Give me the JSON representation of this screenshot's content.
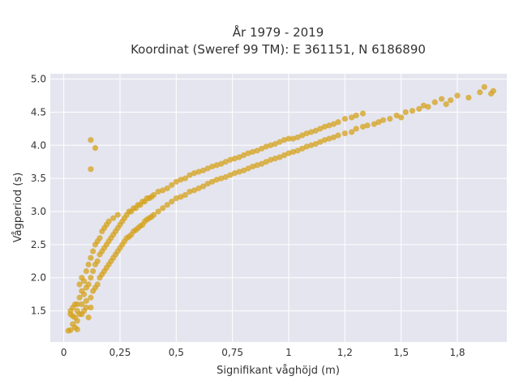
{
  "chart_data": {
    "type": "scatter",
    "title_lines": [
      "År 1979 - 2019",
      "Koordinat (Sweref 99 TM): E 361151, N 6186890"
    ],
    "xlabel": "Signifikant våghöjd (m)",
    "ylabel": "Vågperiod (s)",
    "xlim": [
      -0.06,
      1.97
    ],
    "ylim": [
      1.03,
      5.08
    ],
    "x_ticks": [
      {
        "value": 0,
        "label": "0"
      },
      {
        "value": 0.25,
        "label": "0,25"
      },
      {
        "value": 0.5,
        "label": "0,5"
      },
      {
        "value": 0.75,
        "label": "0,75"
      },
      {
        "value": 1,
        "label": "1"
      },
      {
        "value": 1.25,
        "label": "1,2"
      },
      {
        "value": 1.5,
        "label": "1,5"
      },
      {
        "value": 1.75,
        "label": "1,8"
      }
    ],
    "y_ticks": [
      {
        "value": 1.5,
        "label": "1.5"
      },
      {
        "value": 2.0,
        "label": "2.0"
      },
      {
        "value": 2.5,
        "label": "2.5"
      },
      {
        "value": 3.0,
        "label": "3.0"
      },
      {
        "value": 3.5,
        "label": "3.5"
      },
      {
        "value": 4.0,
        "label": "4.0"
      },
      {
        "value": 4.5,
        "label": "4.5"
      },
      {
        "value": 5.0,
        "label": "5.0"
      }
    ],
    "grid": true,
    "legend": "none",
    "colors": {
      "marker": "#d4a21c",
      "plot_bg": "#e5e5ef",
      "grid": "#ffffff"
    },
    "series": [
      {
        "points": [
          [
            0.02,
            1.2
          ],
          [
            0.03,
            1.21
          ],
          [
            0.03,
            1.45
          ],
          [
            0.04,
            1.3
          ],
          [
            0.04,
            1.55
          ],
          [
            0.05,
            1.25
          ],
          [
            0.05,
            1.4
          ],
          [
            0.05,
            1.6
          ],
          [
            0.06,
            1.5
          ],
          [
            0.06,
            1.35
          ],
          [
            0.07,
            1.45
          ],
          [
            0.07,
            1.7
          ],
          [
            0.07,
            1.9
          ],
          [
            0.08,
            1.6
          ],
          [
            0.08,
            1.8
          ],
          [
            0.08,
            2.0
          ],
          [
            0.09,
            1.5
          ],
          [
            0.09,
            1.75
          ],
          [
            0.09,
            1.95
          ],
          [
            0.1,
            1.65
          ],
          [
            0.1,
            1.85
          ],
          [
            0.1,
            2.1
          ],
          [
            0.11,
            1.4
          ],
          [
            0.11,
            1.9
          ],
          [
            0.11,
            2.2
          ],
          [
            0.12,
            1.7
          ],
          [
            0.12,
            2.0
          ],
          [
            0.12,
            2.3
          ],
          [
            0.13,
            1.8
          ],
          [
            0.13,
            2.1
          ],
          [
            0.13,
            2.4
          ],
          [
            0.14,
            1.85
          ],
          [
            0.14,
            2.2
          ],
          [
            0.14,
            2.5
          ],
          [
            0.15,
            1.9
          ],
          [
            0.15,
            2.25
          ],
          [
            0.15,
            2.55
          ],
          [
            0.16,
            2.0
          ],
          [
            0.16,
            2.35
          ],
          [
            0.16,
            2.6
          ],
          [
            0.17,
            2.05
          ],
          [
            0.17,
            2.4
          ],
          [
            0.17,
            2.7
          ],
          [
            0.18,
            2.1
          ],
          [
            0.18,
            2.45
          ],
          [
            0.18,
            2.75
          ],
          [
            0.19,
            2.15
          ],
          [
            0.19,
            2.5
          ],
          [
            0.19,
            2.8
          ],
          [
            0.2,
            2.2
          ],
          [
            0.2,
            2.55
          ],
          [
            0.2,
            2.85
          ],
          [
            0.21,
            2.25
          ],
          [
            0.21,
            2.6
          ],
          [
            0.22,
            2.3
          ],
          [
            0.22,
            2.65
          ],
          [
            0.22,
            2.9
          ],
          [
            0.23,
            2.35
          ],
          [
            0.23,
            2.7
          ],
          [
            0.24,
            2.4
          ],
          [
            0.24,
            2.75
          ],
          [
            0.24,
            2.95
          ],
          [
            0.25,
            2.45
          ],
          [
            0.25,
            2.8
          ],
          [
            0.26,
            2.5
          ],
          [
            0.26,
            2.85
          ],
          [
            0.27,
            2.55
          ],
          [
            0.27,
            2.9
          ],
          [
            0.28,
            2.6
          ],
          [
            0.28,
            2.95
          ],
          [
            0.29,
            2.62
          ],
          [
            0.29,
            3.0
          ],
          [
            0.3,
            2.65
          ],
          [
            0.3,
            3.0
          ],
          [
            0.31,
            2.7
          ],
          [
            0.31,
            3.05
          ],
          [
            0.32,
            2.72
          ],
          [
            0.32,
            3.05
          ],
          [
            0.33,
            2.75
          ],
          [
            0.33,
            3.1
          ],
          [
            0.34,
            2.78
          ],
          [
            0.34,
            3.1
          ],
          [
            0.35,
            2.8
          ],
          [
            0.35,
            3.15
          ],
          [
            0.36,
            2.85
          ],
          [
            0.36,
            3.15
          ],
          [
            0.37,
            2.88
          ],
          [
            0.37,
            3.2
          ],
          [
            0.38,
            2.9
          ],
          [
            0.38,
            3.2
          ],
          [
            0.39,
            2.92
          ],
          [
            0.39,
            3.22
          ],
          [
            0.4,
            2.95
          ],
          [
            0.4,
            3.25
          ],
          [
            0.42,
            3.0
          ],
          [
            0.42,
            3.3
          ],
          [
            0.44,
            3.05
          ],
          [
            0.44,
            3.32
          ],
          [
            0.46,
            3.1
          ],
          [
            0.46,
            3.35
          ],
          [
            0.48,
            3.15
          ],
          [
            0.48,
            3.4
          ],
          [
            0.5,
            3.2
          ],
          [
            0.5,
            3.45
          ],
          [
            0.52,
            3.22
          ],
          [
            0.52,
            3.48
          ],
          [
            0.54,
            3.25
          ],
          [
            0.54,
            3.5
          ],
          [
            0.56,
            3.3
          ],
          [
            0.56,
            3.55
          ],
          [
            0.58,
            3.32
          ],
          [
            0.58,
            3.58
          ],
          [
            0.6,
            3.35
          ],
          [
            0.6,
            3.6
          ],
          [
            0.62,
            3.38
          ],
          [
            0.62,
            3.62
          ],
          [
            0.64,
            3.42
          ],
          [
            0.64,
            3.65
          ],
          [
            0.66,
            3.45
          ],
          [
            0.66,
            3.68
          ],
          [
            0.68,
            3.48
          ],
          [
            0.68,
            3.7
          ],
          [
            0.7,
            3.5
          ],
          [
            0.7,
            3.72
          ],
          [
            0.72,
            3.52
          ],
          [
            0.72,
            3.75
          ],
          [
            0.74,
            3.55
          ],
          [
            0.74,
            3.78
          ],
          [
            0.76,
            3.58
          ],
          [
            0.76,
            3.8
          ],
          [
            0.78,
            3.6
          ],
          [
            0.78,
            3.82
          ],
          [
            0.8,
            3.62
          ],
          [
            0.8,
            3.85
          ],
          [
            0.82,
            3.65
          ],
          [
            0.82,
            3.88
          ],
          [
            0.84,
            3.68
          ],
          [
            0.84,
            3.9
          ],
          [
            0.86,
            3.7
          ],
          [
            0.86,
            3.92
          ],
          [
            0.88,
            3.72
          ],
          [
            0.88,
            3.95
          ],
          [
            0.9,
            3.75
          ],
          [
            0.9,
            3.98
          ],
          [
            0.92,
            3.78
          ],
          [
            0.92,
            4.0
          ],
          [
            0.94,
            3.8
          ],
          [
            0.94,
            4.02
          ],
          [
            0.96,
            3.82
          ],
          [
            0.96,
            4.05
          ],
          [
            0.98,
            3.85
          ],
          [
            0.98,
            4.08
          ],
          [
            1.0,
            3.88
          ],
          [
            1.0,
            4.1
          ],
          [
            1.02,
            3.9
          ],
          [
            1.02,
            4.1
          ],
          [
            1.04,
            3.92
          ],
          [
            1.04,
            4.12
          ],
          [
            1.06,
            3.95
          ],
          [
            1.06,
            4.15
          ],
          [
            1.08,
            3.98
          ],
          [
            1.08,
            4.18
          ],
          [
            1.1,
            4.0
          ],
          [
            1.1,
            4.2
          ],
          [
            1.12,
            4.02
          ],
          [
            1.12,
            4.22
          ],
          [
            1.14,
            4.05
          ],
          [
            1.14,
            4.25
          ],
          [
            1.16,
            4.08
          ],
          [
            1.16,
            4.28
          ],
          [
            1.18,
            4.1
          ],
          [
            1.18,
            4.3
          ],
          [
            1.2,
            4.12
          ],
          [
            1.2,
            4.32
          ],
          [
            1.22,
            4.15
          ],
          [
            1.22,
            4.35
          ],
          [
            1.25,
            4.18
          ],
          [
            1.25,
            4.4
          ],
          [
            1.28,
            4.2
          ],
          [
            1.28,
            4.42
          ],
          [
            1.3,
            4.25
          ],
          [
            1.3,
            4.45
          ],
          [
            1.33,
            4.28
          ],
          [
            1.33,
            4.48
          ],
          [
            1.35,
            4.3
          ],
          [
            1.38,
            4.32
          ],
          [
            1.4,
            4.35
          ],
          [
            1.42,
            4.38
          ],
          [
            1.45,
            4.4
          ],
          [
            1.48,
            4.45
          ],
          [
            1.5,
            4.42
          ],
          [
            1.52,
            4.5
          ],
          [
            1.55,
            4.52
          ],
          [
            1.58,
            4.55
          ],
          [
            1.6,
            4.6
          ],
          [
            1.62,
            4.58
          ],
          [
            1.65,
            4.65
          ],
          [
            1.68,
            4.7
          ],
          [
            1.7,
            4.62
          ],
          [
            1.72,
            4.68
          ],
          [
            1.75,
            4.75
          ],
          [
            1.8,
            4.72
          ],
          [
            1.85,
            4.8
          ],
          [
            1.87,
            4.88
          ],
          [
            1.9,
            4.78
          ],
          [
            1.91,
            4.82
          ],
          [
            0.12,
            4.08
          ],
          [
            0.14,
            3.96
          ],
          [
            0.12,
            3.64
          ],
          [
            0.03,
            1.5
          ],
          [
            0.04,
            1.42
          ],
          [
            0.06,
            1.6
          ],
          [
            0.08,
            1.45
          ],
          [
            0.1,
            1.55
          ],
          [
            0.06,
            1.22
          ],
          [
            0.12,
            1.55
          ]
        ]
      }
    ]
  }
}
